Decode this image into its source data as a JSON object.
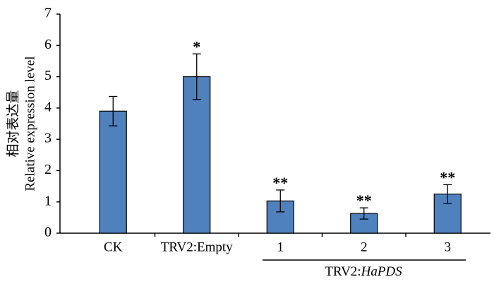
{
  "chart_data": {
    "type": "bar",
    "ylabel": [
      "相对表达量",
      "Relative expression level"
    ],
    "categories": [
      "CK",
      "TRV2:Empty",
      "1",
      "2",
      "3"
    ],
    "values": [
      3.9,
      5.0,
      1.03,
      0.63,
      1.25
    ],
    "errors": [
      0.47,
      0.73,
      0.35,
      0.18,
      0.3
    ],
    "significance": [
      null,
      "*",
      "**",
      "**",
      "**"
    ],
    "group_label": [
      "TRV2:",
      "HaPDS"
    ],
    "color": "#4f81bd",
    "ylim": [
      0,
      7
    ],
    "yticks": [
      0,
      1,
      2,
      3,
      4,
      5,
      6,
      7
    ]
  }
}
